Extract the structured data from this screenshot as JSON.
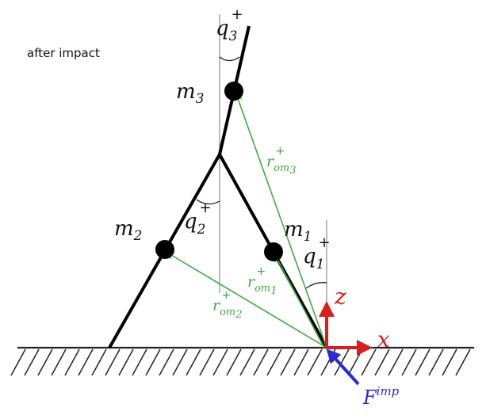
{
  "caption": "after impact",
  "colors": {
    "link": "#000000",
    "ground": "#222222",
    "vector": "#3cab45",
    "axis": "#d62020",
    "force": "#2a2ad0",
    "guide": "#777777"
  },
  "masses": {
    "m3": {
      "base": "m",
      "sub": "3"
    },
    "m2": {
      "base": "m",
      "sub": "2"
    },
    "m1": {
      "base": "m",
      "sub": "1"
    }
  },
  "angles": {
    "q3": {
      "base": "q",
      "sub": "3",
      "sup": "+"
    },
    "q2": {
      "base": "q",
      "sub": "2",
      "sup": "+"
    },
    "q1": {
      "base": "q",
      "sub": "1",
      "sup": "+"
    }
  },
  "vectors": {
    "r3": {
      "base": "r",
      "sub": "om",
      "subsub": "3",
      "sup": "+"
    },
    "r2": {
      "base": "r",
      "sub": "om",
      "subsub": "2",
      "sup": "+"
    },
    "r1": {
      "base": "r",
      "sub": "om",
      "subsub": "1",
      "sup": "+"
    }
  },
  "axes": {
    "x": "x",
    "z": "z"
  },
  "force": {
    "base": "F",
    "sup": "imp"
  }
}
